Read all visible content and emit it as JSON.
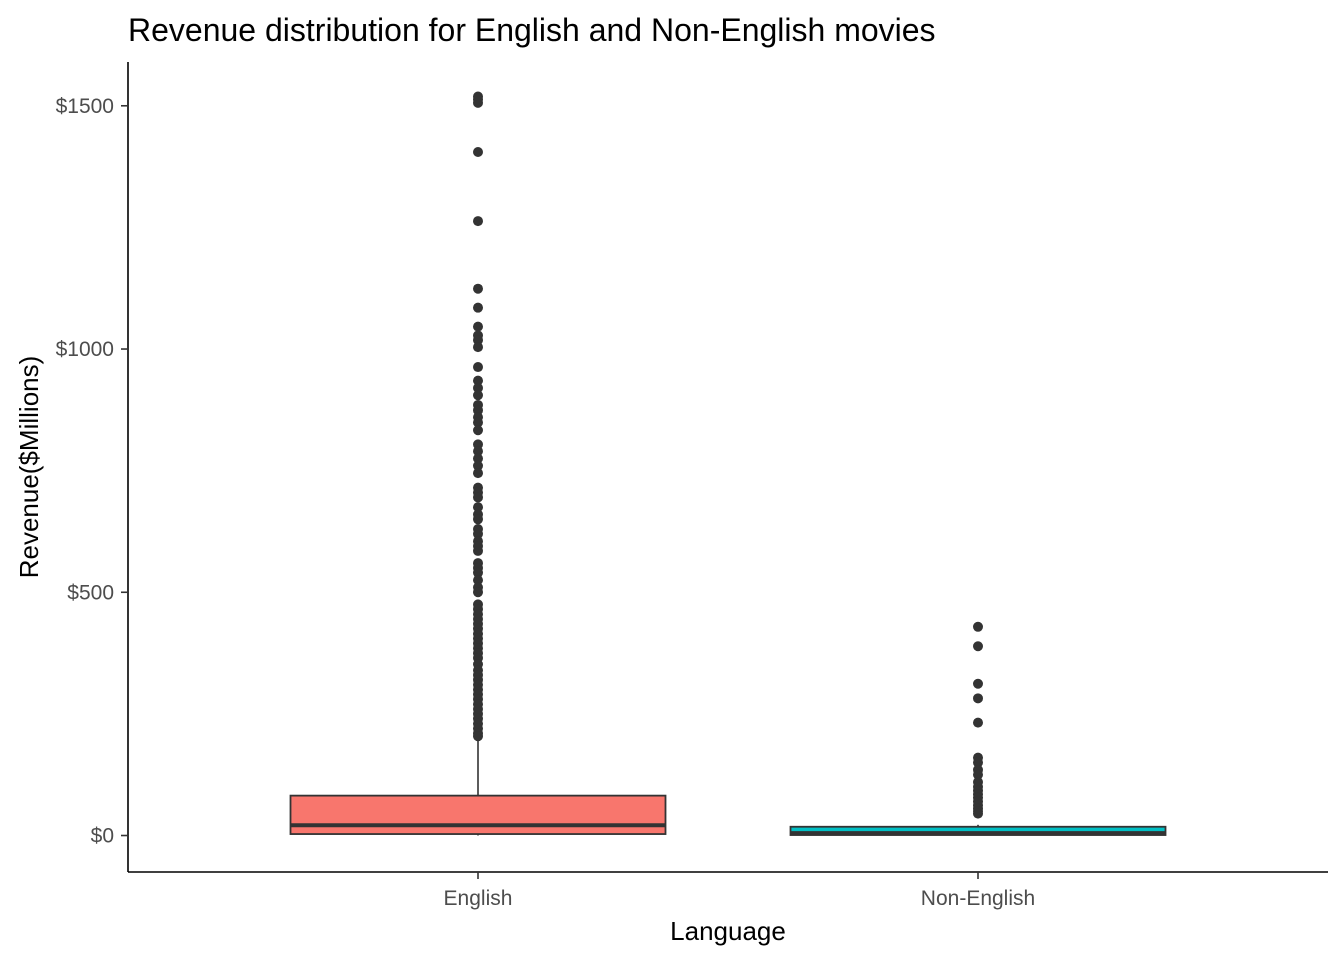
{
  "chart_data": {
    "type": "boxplot",
    "title": "Revenue distribution for English and Non-English movies",
    "xlabel": "Language",
    "ylabel": "Revenue($Millions)",
    "ylim": [
      -75,
      1590
    ],
    "y_ticks": [
      {
        "value": 0,
        "label": "$0"
      },
      {
        "value": 500,
        "label": "$500"
      },
      {
        "value": 1000,
        "label": "$1000"
      },
      {
        "value": 1500,
        "label": "$1500"
      }
    ],
    "grid": false,
    "legend": "none",
    "categories": [
      "English",
      "Non-English"
    ],
    "boxes": [
      {
        "category": "English",
        "color": "#F8766D",
        "whisker_low": 0,
        "q1": 3,
        "median": 21,
        "q3": 82,
        "whisker_high": 198,
        "outliers": [
          1519,
          1513,
          1506,
          1405,
          1263,
          1124,
          1085,
          1046,
          1028,
          1018,
          1004,
          963,
          935,
          920,
          905,
          885,
          874,
          860,
          849,
          833,
          804,
          790,
          775,
          760,
          745,
          715,
          705,
          695,
          675,
          660,
          650,
          630,
          620,
          605,
          595,
          585,
          560,
          550,
          540,
          525,
          510,
          500,
          475,
          465,
          455,
          445,
          435,
          425,
          415,
          405,
          395,
          385,
          375,
          365,
          352,
          340,
          330,
          320,
          310,
          300,
          290,
          280,
          270,
          260,
          250,
          240,
          230,
          220,
          210,
          204
        ]
      },
      {
        "category": "Non-English",
        "color": "#00BFC4",
        "whisker_low": 0,
        "q1": 1,
        "median": 5,
        "q3": 18,
        "whisker_high": 22,
        "outliers": [
          429,
          389,
          312,
          282,
          232,
          160,
          150,
          135,
          125,
          110,
          100,
          92,
          85,
          78,
          70,
          62,
          55,
          50,
          45
        ]
      }
    ]
  }
}
